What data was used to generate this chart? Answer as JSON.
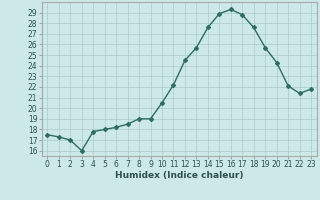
{
  "x": [
    0,
    1,
    2,
    3,
    4,
    5,
    6,
    7,
    8,
    9,
    10,
    11,
    12,
    13,
    14,
    15,
    16,
    17,
    18,
    19,
    20,
    21,
    22,
    23
  ],
  "y": [
    17.5,
    17.3,
    17.0,
    16.0,
    17.8,
    18.0,
    18.2,
    18.5,
    19.0,
    19.0,
    20.5,
    22.2,
    24.5,
    25.7,
    27.6,
    28.9,
    29.3,
    28.8,
    27.6,
    25.7,
    24.3,
    22.1,
    21.4,
    21.8
  ],
  "line_color": "#2d6e5e",
  "marker": "D",
  "marker_size": 2.0,
  "bg_color": "#cce8e8",
  "grid_color": "#aacccc",
  "xlabel": "Humidex (Indice chaleur)",
  "xlim": [
    -0.5,
    23.5
  ],
  "ylim": [
    15.5,
    30.0
  ],
  "yticks": [
    16,
    17,
    18,
    19,
    20,
    21,
    22,
    23,
    24,
    25,
    26,
    27,
    28,
    29
  ],
  "xticks": [
    0,
    1,
    2,
    3,
    4,
    5,
    6,
    7,
    8,
    9,
    10,
    11,
    12,
    13,
    14,
    15,
    16,
    17,
    18,
    19,
    20,
    21,
    22,
    23
  ],
  "tick_fontsize": 5.5,
  "xlabel_fontsize": 6.5,
  "linewidth": 1.0
}
